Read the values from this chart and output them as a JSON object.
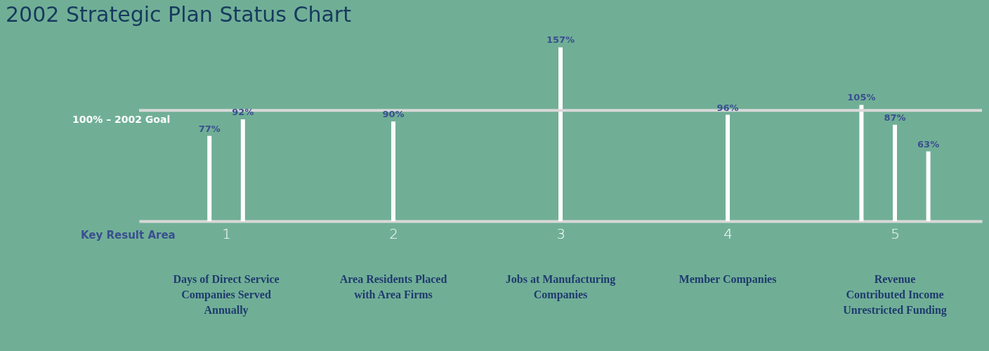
{
  "chart_data": {
    "type": "bar",
    "title": "2002 Strategic Plan Status Chart",
    "xlabel": "Key Result Area",
    "categories": [
      "1",
      "2",
      "3",
      "4",
      "5"
    ],
    "series": [
      {
        "color": "#ffffff",
        "values": [
          77,
          90,
          157,
          96,
          105
        ],
        "value_labels": [
          "77%",
          "90%",
          "157%",
          "96%",
          "105%"
        ]
      },
      {
        "color": "#ffffff",
        "values": [
          92,
          null,
          null,
          null,
          87
        ],
        "value_labels": [
          "92%",
          null,
          null,
          null,
          "87%"
        ]
      },
      {
        "color": "#ffffff",
        "values": [
          null,
          null,
          null,
          null,
          63
        ],
        "value_labels": [
          null,
          null,
          null,
          null,
          "63%"
        ]
      }
    ],
    "ref_lines": [
      {
        "axis": "y",
        "value": 100,
        "label": "100% – 2002 Goal",
        "color": "#d9d9d9"
      }
    ],
    "annotations": [
      "Days of Direct Service\nCompanies Served\nAnnually",
      "Area Residents Placed\nwith Area Firms",
      "Jobs at Manufacturing\nCompanies",
      "Member Companies",
      "Revenue\nContributed Income\nUnrestricted Funding"
    ],
    "tick_labels": "x",
    "grid": false
  }
}
